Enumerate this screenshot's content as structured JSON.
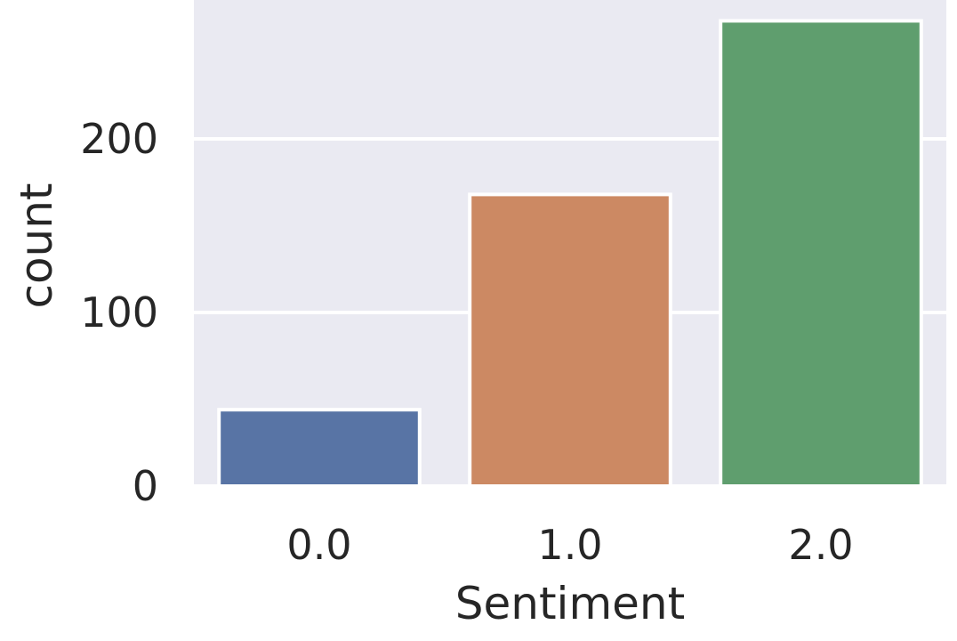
{
  "chart_data": {
    "type": "bar",
    "categories": [
      "0.0",
      "1.0",
      "2.0"
    ],
    "values": [
      44,
      168,
      268
    ],
    "colors": [
      "#5874a5",
      "#cc8963",
      "#5f9e6e"
    ],
    "title": "",
    "xlabel": "Sentiment",
    "ylabel": "count",
    "yticks": [
      0,
      100,
      200
    ],
    "ylim": [
      0,
      280
    ],
    "grid": true,
    "style": {
      "background": "#eaeaf2",
      "grid_color": "#ffffff",
      "edge_color": "#ffffff"
    }
  }
}
